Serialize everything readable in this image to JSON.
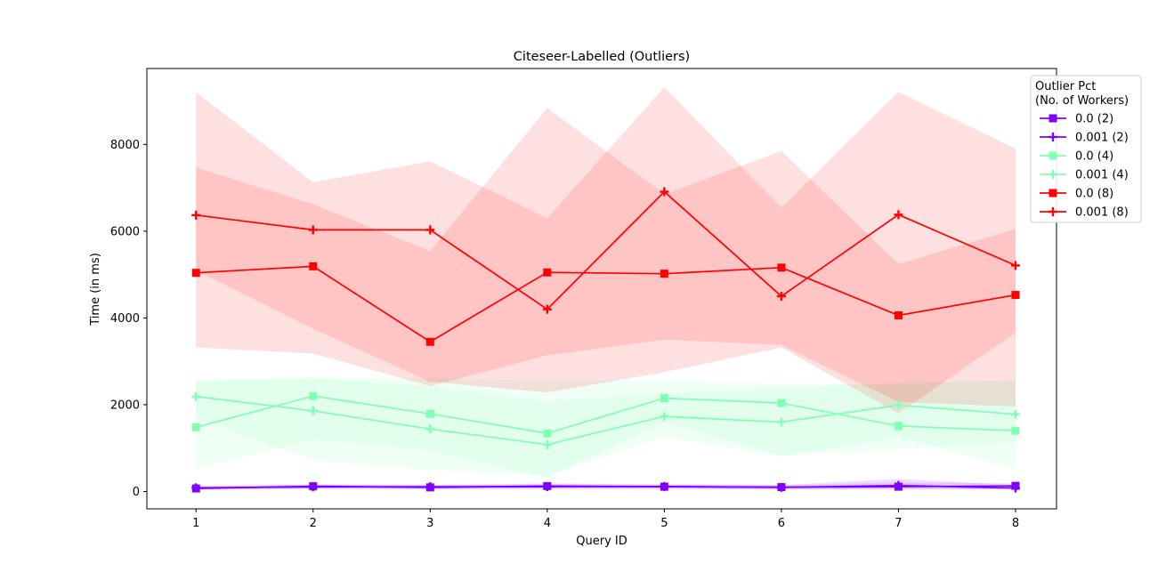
{
  "chart_data": {
    "type": "line",
    "title": "Citeseer-Labelled (Outliers)",
    "xlabel": "Query ID",
    "ylabel": "Time (in ms)",
    "x": [
      1,
      2,
      3,
      4,
      5,
      6,
      7,
      8
    ],
    "xticks": [
      "1",
      "2",
      "3",
      "4",
      "5",
      "6",
      "7",
      "8"
    ],
    "yticks": [
      0,
      2000,
      4000,
      6000,
      8000
    ],
    "xlim": [
      0.58,
      8.35
    ],
    "ylim": [
      -400,
      9750
    ],
    "grid": false,
    "legend": {
      "title_line1": "Outlier Pct",
      "title_line2": "(No. of Workers)",
      "placement": "top-right, outside axes"
    },
    "series": [
      {
        "name": "0.0 (2)",
        "color": "#8000ff",
        "marker": "square",
        "values": [
          70,
          120,
          95,
          125,
          110,
          100,
          110,
          130
        ],
        "band_low": [
          40,
          70,
          50,
          60,
          60,
          50,
          40,
          60
        ],
        "band_high": [
          110,
          170,
          140,
          190,
          160,
          150,
          210,
          190
        ]
      },
      {
        "name": "0.001 (2)",
        "color": "#8000ff",
        "marker": "plus",
        "values": [
          85,
          105,
          110,
          110,
          115,
          95,
          140,
          80
        ],
        "band_low": [
          40,
          60,
          60,
          60,
          60,
          50,
          60,
          40
        ],
        "band_high": [
          140,
          160,
          160,
          170,
          170,
          150,
          290,
          150
        ]
      },
      {
        "name": "0.0 (4)",
        "color": "#80ffb4",
        "marker": "square",
        "values": [
          1480,
          2200,
          1790,
          1340,
          2150,
          2040,
          1510,
          1400
        ],
        "band_low": [
          520,
          1200,
          950,
          320,
          1600,
          820,
          1250,
          520
        ],
        "band_high": [
          2550,
          2620,
          2620,
          2540,
          2560,
          2480,
          2470,
          2580
        ]
      },
      {
        "name": "0.001 (4)",
        "color": "#80ffb4",
        "marker": "plus",
        "values": [
          2190,
          1860,
          1440,
          1080,
          1730,
          1600,
          1990,
          1780
        ],
        "band_low": [
          1700,
          720,
          500,
          360,
          1250,
          820,
          970,
          1130
        ],
        "band_high": [
          2580,
          2620,
          2420,
          2080,
          2280,
          2380,
          2520,
          2560
        ]
      },
      {
        "name": "0.0 (8)",
        "color": "#ff0000",
        "marker": "square",
        "values": [
          5040,
          5190,
          3450,
          5050,
          5020,
          5160,
          4060,
          4530
        ],
        "band_low": [
          3320,
          3180,
          2430,
          3140,
          3500,
          3380,
          2060,
          1960
        ],
        "band_high": [
          9200,
          7130,
          7610,
          6300,
          9320,
          6540,
          9210,
          7900
        ]
      },
      {
        "name": "0.001 (8)",
        "color": "#ff0000",
        "marker": "plus",
        "values": [
          6370,
          6030,
          6030,
          4200,
          6910,
          4500,
          6380,
          5210
        ],
        "band_low": [
          5100,
          3750,
          2530,
          2280,
          2750,
          3320,
          1800,
          3660
        ],
        "band_high": [
          7470,
          6620,
          5540,
          8840,
          6850,
          7850,
          5240,
          6050
        ]
      }
    ]
  }
}
